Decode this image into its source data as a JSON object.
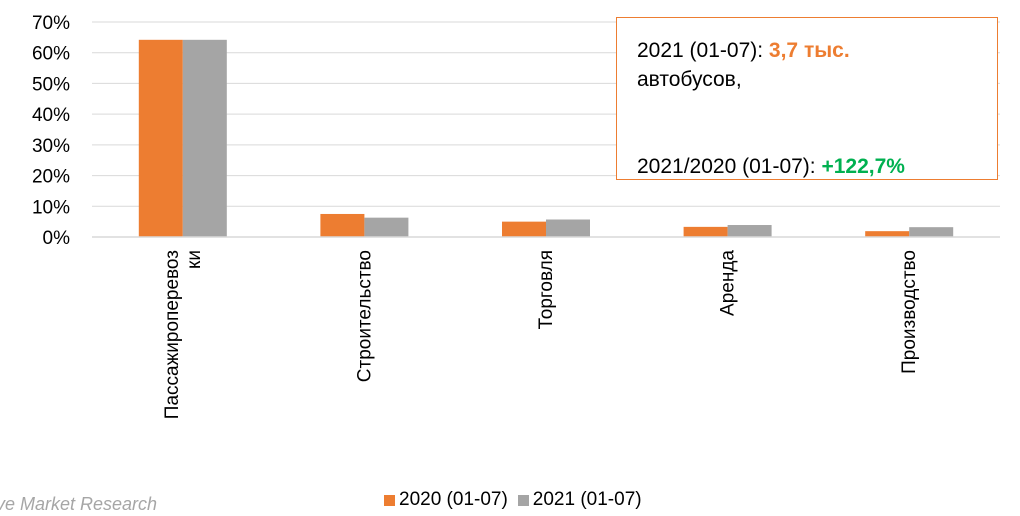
{
  "chart_data": {
    "type": "bar",
    "categories": [
      "Пассажироперевоз ки",
      "Строительство",
      "Торговля",
      "Аренда",
      "Производство"
    ],
    "category_lines": [
      [
        "Пассажироперевоз",
        "ки"
      ],
      [
        "Строительство"
      ],
      [
        "Торговля"
      ],
      [
        "Аренда"
      ],
      [
        "Производство"
      ]
    ],
    "series": [
      {
        "name": "2020 (01-07)",
        "color": "#ED7D31",
        "values": [
          64.2,
          7.5,
          5.0,
          3.3,
          1.9
        ]
      },
      {
        "name": "2021 (01-07)",
        "color": "#A5A5A5",
        "values": [
          64.2,
          6.3,
          5.7,
          3.9,
          3.2
        ]
      }
    ],
    "ylim": [
      0,
      70
    ],
    "yticks": [
      "0%",
      "10%",
      "20%",
      "30%",
      "40%",
      "50%",
      "60%",
      "70%"
    ],
    "grid": true,
    "legend_position": "bottom"
  },
  "annotation": {
    "line1_prefix": "2021 (01-07): ",
    "line1_value": "3,7 тыс.",
    "line2": "автобусов,",
    "line3_prefix": "2021/2020 (01-07): ",
    "line3_value": "+122,7%"
  },
  "source": "ve Market Research"
}
